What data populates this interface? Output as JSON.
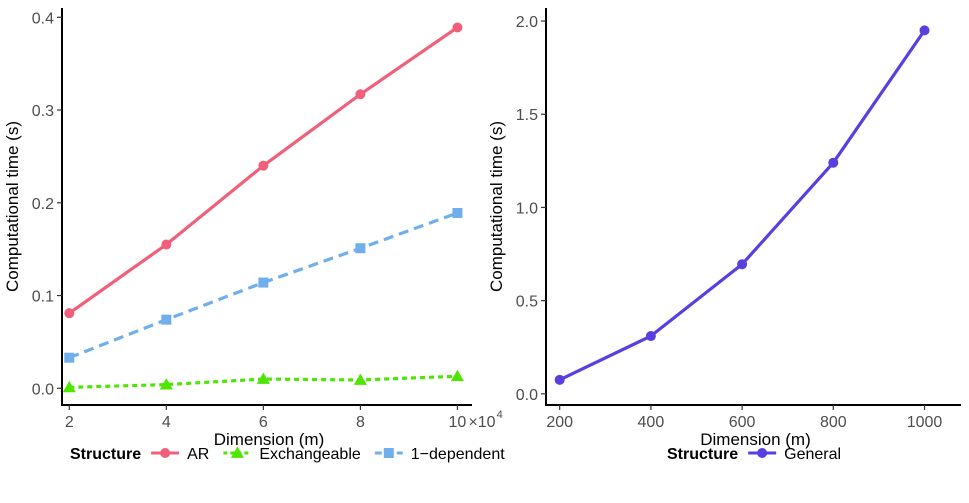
{
  "chart_data": [
    {
      "type": "line",
      "x": [
        2,
        4,
        6,
        8,
        10
      ],
      "x_ticks": [
        "2",
        "4",
        "6",
        "8",
        "10"
      ],
      "x_multiplier": "×10",
      "x_multiplier_exp": "4",
      "xlim": [
        1.85,
        10.3
      ],
      "ylim": [
        -0.018,
        0.41
      ],
      "y_ticks": [
        0.0,
        0.1,
        0.2,
        0.3,
        0.4
      ],
      "y_tick_labels": [
        "0.0",
        "0.1",
        "0.2",
        "0.3",
        "0.4"
      ],
      "xlabel": "Dimension (m)",
      "ylabel": "Computational time (s)",
      "legend_title": "Structure",
      "series": [
        {
          "name": "AR",
          "values": [
            0.081,
            0.155,
            0.24,
            0.317,
            0.389
          ],
          "color": "#F0607A",
          "dash": "solid",
          "marker": "circle"
        },
        {
          "name": "Exchangeable",
          "values": [
            0.001,
            0.004,
            0.01,
            0.009,
            0.013
          ],
          "color": "#4CE600",
          "dash": "dotted",
          "marker": "triangle"
        },
        {
          "name": "1−dependent",
          "values": [
            0.033,
            0.074,
            0.114,
            0.151,
            0.189
          ],
          "color": "#70AEEC",
          "dash": "dashed",
          "marker": "square"
        }
      ]
    },
    {
      "type": "line",
      "x": [
        200,
        400,
        600,
        800,
        1000
      ],
      "x_ticks": [
        "200",
        "400",
        "600",
        "800",
        "1000"
      ],
      "xlim": [
        170,
        1080
      ],
      "ylim": [
        -0.06,
        2.07
      ],
      "y_ticks": [
        0.0,
        0.5,
        1.0,
        1.5,
        2.0
      ],
      "y_tick_labels": [
        "0.0",
        "0.5",
        "1.0",
        "1.5",
        "2.0"
      ],
      "xlabel": "Dimension (m)",
      "ylabel": "Computational time (s)",
      "legend_title": "Structure",
      "series": [
        {
          "name": "General",
          "values": [
            0.075,
            0.31,
            0.695,
            1.24,
            1.95
          ],
          "color": "#5A3FE0",
          "dash": "solid",
          "marker": "circle"
        }
      ]
    }
  ]
}
